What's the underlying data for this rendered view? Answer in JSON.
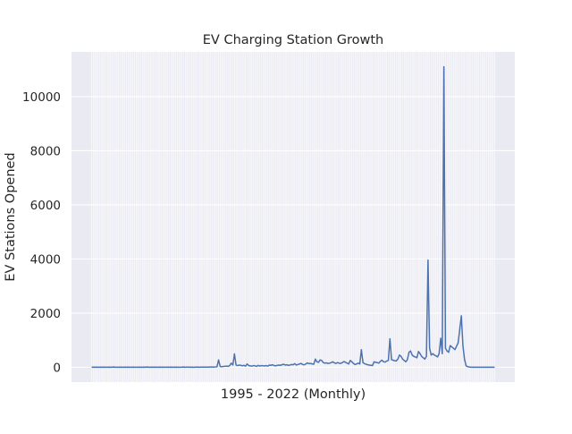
{
  "chart_data": {
    "type": "line",
    "title": "EV Charging Station Growth",
    "xlabel": "1995 - 2022 (Monthly)",
    "ylabel": "EV Stations Opened",
    "ylim": [
      -550,
      11650
    ],
    "yticks": [
      0,
      2000,
      4000,
      6000,
      8000,
      10000
    ],
    "ytick_labels": [
      "0",
      "2000",
      "4000",
      "6000",
      "8000",
      "10000"
    ],
    "x_tick_labels_shown": false,
    "grid": true,
    "background_color": "#eaeaf2",
    "line_color": "#4c72b0",
    "series": [
      {
        "values": [
          0,
          2,
          0,
          3,
          0,
          1,
          5,
          0,
          2,
          1,
          0,
          3,
          0,
          2,
          6,
          0,
          1,
          0,
          2,
          0,
          1,
          3,
          0,
          4,
          0,
          1,
          2,
          0,
          1,
          0,
          3,
          1,
          0,
          2,
          0,
          8,
          1,
          0,
          5,
          0,
          2,
          0,
          1,
          3,
          0,
          2,
          0,
          1,
          4,
          0,
          2,
          1,
          0,
          3,
          0,
          1,
          0,
          2,
          6,
          0,
          4,
          2,
          0,
          3,
          1,
          0,
          4,
          2,
          1,
          3,
          5,
          2,
          3,
          4,
          2,
          6,
          8,
          4,
          10,
          15,
          270,
          25,
          20,
          30,
          35,
          40,
          30,
          60,
          150,
          80,
          490,
          80,
          60,
          80,
          70,
          50,
          70,
          40,
          120,
          60,
          50,
          40,
          60,
          50,
          30,
          70,
          40,
          60,
          50,
          50,
          60,
          40,
          80,
          70,
          90,
          60,
          50,
          70,
          80,
          70,
          90,
          110,
          80,
          90,
          70,
          80,
          100,
          90,
          130,
          80,
          100,
          120,
          140,
          100,
          90,
          120,
          160,
          130,
          140,
          120,
          110,
          300,
          200,
          180,
          270,
          250,
          170,
          150,
          160,
          140,
          150,
          170,
          200,
          160,
          140,
          170,
          150,
          140,
          170,
          210,
          180,
          150,
          120,
          250,
          200,
          140,
          100,
          120,
          150,
          120,
          650,
          170,
          130,
          110,
          90,
          80,
          70,
          60,
          200,
          180,
          170,
          150,
          220,
          260,
          200,
          190,
          230,
          250,
          1050,
          280,
          260,
          240,
          230,
          300,
          450,
          400,
          300,
          250,
          200,
          280,
          550,
          600,
          450,
          400,
          380,
          350,
          580,
          500,
          400,
          350,
          300,
          400,
          3960,
          700,
          450,
          500,
          450,
          420,
          380,
          500,
          1070,
          500,
          11100,
          700,
          600,
          550,
          800,
          750,
          700,
          650,
          780,
          900,
          1400,
          1900,
          800,
          300,
          50,
          20,
          10,
          0,
          0,
          0,
          0,
          0,
          0,
          0,
          0,
          0,
          0,
          0,
          0,
          0,
          0,
          0,
          0
        ]
      }
    ]
  }
}
